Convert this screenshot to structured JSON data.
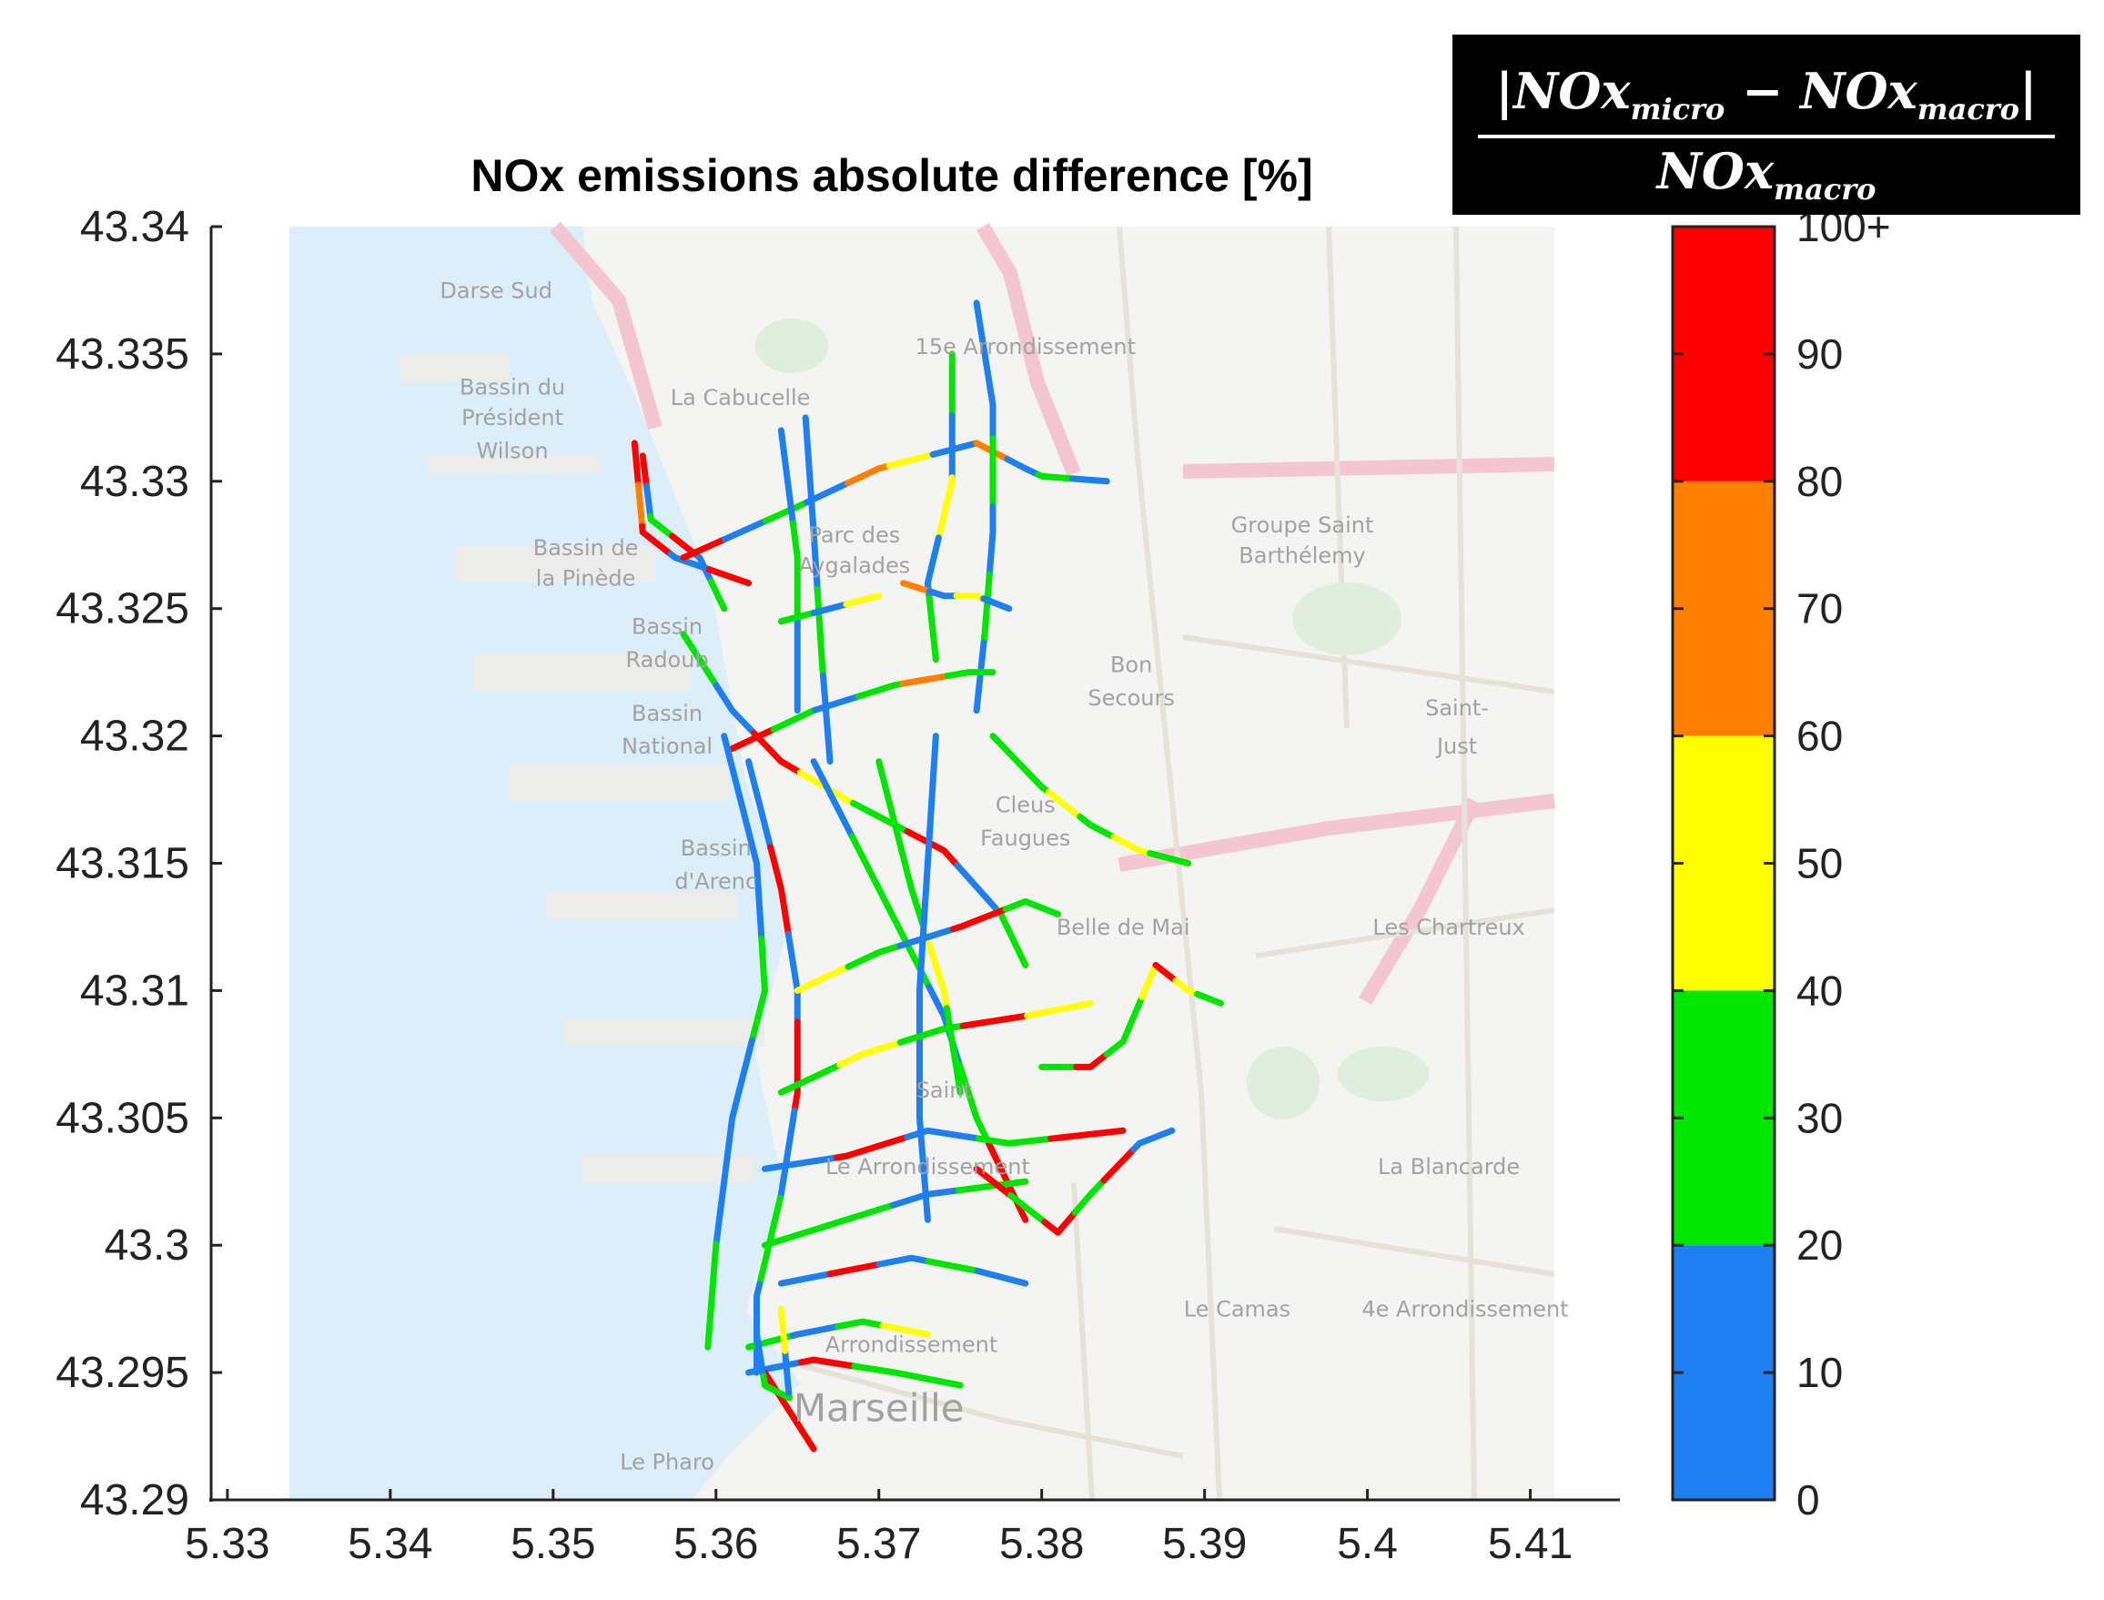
{
  "title": "NOx emissions absolute difference [%]",
  "formula": {
    "numerator_left": "|NOx",
    "numerator_sub1": "micro",
    "numerator_mid": " − NOx",
    "numerator_sub2": "macro",
    "numerator_right": "|",
    "denominator": "NOx",
    "denominator_sub": "macro"
  },
  "axes": {
    "x_ticks": [
      "5.33",
      "5.34",
      "5.35",
      "5.36",
      "5.37",
      "5.38",
      "5.39",
      "5.4",
      "5.41"
    ],
    "y_ticks": [
      "43.34",
      "43.335",
      "43.33",
      "43.325",
      "43.32",
      "43.315",
      "43.31",
      "43.305",
      "43.3",
      "43.295",
      "43.29"
    ],
    "xlim": [
      5.329,
      5.4155
    ],
    "ylim": [
      43.29,
      43.34
    ]
  },
  "colorbar": {
    "ticks": [
      "0",
      "10",
      "20",
      "30",
      "40",
      "50",
      "60",
      "70",
      "80",
      "90",
      "100+"
    ],
    "bands": [
      {
        "from": 0,
        "to": 20,
        "color": "#1e7ff0"
      },
      {
        "from": 20,
        "to": 40,
        "color": "#00e600"
      },
      {
        "from": 40,
        "to": 60,
        "color": "#ffff00"
      },
      {
        "from": 60,
        "to": 80,
        "color": "#ff7f00"
      },
      {
        "from": 80,
        "to": 100,
        "color": "#ff0000"
      }
    ]
  },
  "map_labels": [
    {
      "text": "Darse Sud",
      "lon": 5.3465,
      "lat": 43.3372
    },
    {
      "text": "La Cabucelle",
      "lon": 5.3615,
      "lat": 43.333
    },
    {
      "text": "Bassin du",
      "lon": 5.3475,
      "lat": 43.3334
    },
    {
      "text": "Président",
      "lon": 5.3475,
      "lat": 43.3322
    },
    {
      "text": "Wilson",
      "lon": 5.3475,
      "lat": 43.3309
    },
    {
      "text": "Bassin de",
      "lon": 5.352,
      "lat": 43.3271
    },
    {
      "text": "la Pinède",
      "lon": 5.352,
      "lat": 43.3259
    },
    {
      "text": "Bassin",
      "lon": 5.357,
      "lat": 43.324
    },
    {
      "text": "Radoub",
      "lon": 5.357,
      "lat": 43.3227
    },
    {
      "text": "Bassin",
      "lon": 5.357,
      "lat": 43.3206
    },
    {
      "text": "National",
      "lon": 5.357,
      "lat": 43.3193
    },
    {
      "text": "Bassin",
      "lon": 5.36,
      "lat": 43.3153
    },
    {
      "text": "d'Arenc",
      "lon": 5.36,
      "lat": 43.314
    },
    {
      "text": "15e Arrondissement",
      "lon": 5.379,
      "lat": 43.335
    },
    {
      "text": "Parc des",
      "lon": 5.3685,
      "lat": 43.3276
    },
    {
      "text": "Aygalades",
      "lon": 5.3685,
      "lat": 43.3264
    },
    {
      "text": "Bon",
      "lon": 5.3855,
      "lat": 43.3225
    },
    {
      "text": "Secours",
      "lon": 5.3855,
      "lat": 43.3212
    },
    {
      "text": "Groupe Saint",
      "lon": 5.396,
      "lat": 43.328
    },
    {
      "text": "Barthélemy",
      "lon": 5.396,
      "lat": 43.3268
    },
    {
      "text": "Saint-",
      "lon": 5.4055,
      "lat": 43.3208
    },
    {
      "text": "Just",
      "lon": 5.4055,
      "lat": 43.3193
    },
    {
      "text": "Belle de Mai",
      "lon": 5.385,
      "lat": 43.3122
    },
    {
      "text": "Les Chartreux",
      "lon": 5.405,
      "lat": 43.3122
    },
    {
      "text": "La Blancarde",
      "lon": 5.405,
      "lat": 43.3028
    },
    {
      "text": "Le Camas",
      "lon": 5.392,
      "lat": 43.2972
    },
    {
      "text": "4e Arrondissement",
      "lon": 5.406,
      "lat": 43.2972
    },
    {
      "text": "Marseille",
      "lon": 5.37,
      "lat": 43.2931
    },
    {
      "text": "Le Pharo",
      "lon": 5.357,
      "lat": 43.2912
    },
    {
      "text": "Le Arrondissement",
      "lon": 5.373,
      "lat": 43.3028
    },
    {
      "text": "Arrondissement",
      "lon": 5.372,
      "lat": 43.2958
    },
    {
      "text": "Saint",
      "lon": 5.374,
      "lat": 43.3058
    },
    {
      "text": "Cleus",
      "lon": 5.379,
      "lat": 43.317
    },
    {
      "text": "Faugues",
      "lon": 5.379,
      "lat": 43.3157
    }
  ],
  "road_segments": [
    {
      "name": "coastal-north-1",
      "points": [
        [
          5.3555,
          43.331
        ],
        [
          5.356,
          43.3285
        ],
        [
          5.359,
          43.327
        ],
        [
          5.3605,
          43.325
        ]
      ],
      "colors": [
        "red",
        "blue",
        "green",
        "red",
        "blue",
        "green"
      ]
    },
    {
      "name": "coastal-north-2",
      "points": [
        [
          5.355,
          43.3315
        ],
        [
          5.3555,
          43.328
        ],
        [
          5.3575,
          43.327
        ],
        [
          5.362,
          43.326
        ]
      ],
      "colors": [
        "red",
        "orange",
        "red",
        "blue",
        "red"
      ]
    },
    {
      "name": "northern-arterial",
      "points": [
        [
          5.358,
          43.327
        ],
        [
          5.365,
          43.329
        ],
        [
          5.37,
          43.3305
        ],
        [
          5.376,
          43.3315
        ]
      ],
      "colors": [
        "red",
        "blue",
        "green",
        "blue",
        "orange",
        "yellow",
        "blue"
      ]
    },
    {
      "name": "north-spur-1",
      "points": [
        [
          5.376,
          43.3315
        ],
        [
          5.379,
          43.3305
        ],
        [
          5.38,
          43.3302
        ],
        [
          5.384,
          43.33
        ]
      ],
      "colors": [
        "orange",
        "blue",
        "green",
        "blue"
      ]
    },
    {
      "name": "vertical-east-1",
      "points": [
        [
          5.376,
          43.337
        ],
        [
          5.377,
          43.333
        ],
        [
          5.377,
          43.328
        ],
        [
          5.3765,
          43.324
        ],
        [
          5.376,
          43.321
        ]
      ],
      "colors": [
        "blue",
        "blue",
        "green",
        "blue",
        "green",
        "blue"
      ]
    },
    {
      "name": "vertical-east-2",
      "points": [
        [
          5.3745,
          43.335
        ],
        [
          5.3745,
          43.33
        ],
        [
          5.373,
          43.326
        ],
        [
          5.3735,
          43.323
        ]
      ],
      "colors": [
        "green",
        "blue",
        "yellow",
        "blue",
        "green"
      ]
    },
    {
      "name": "vertical-mid-1",
      "points": [
        [
          5.3655,
          43.3325
        ],
        [
          5.366,
          43.328
        ],
        [
          5.3665,
          43.323
        ],
        [
          5.367,
          43.319
        ]
      ],
      "colors": [
        "blue",
        "blue",
        "green",
        "blue"
      ]
    },
    {
      "name": "vertical-mid-2",
      "points": [
        [
          5.364,
          43.332
        ],
        [
          5.365,
          43.327
        ],
        [
          5.365,
          43.321
        ]
      ],
      "colors": [
        "blue",
        "green",
        "blue"
      ]
    },
    {
      "name": "cross-1",
      "points": [
        [
          5.364,
          43.3245
        ],
        [
          5.367,
          43.325
        ],
        [
          5.37,
          43.3255
        ]
      ],
      "colors": [
        "green",
        "blue",
        "yellow"
      ]
    },
    {
      "name": "cross-2",
      "points": [
        [
          5.3715,
          43.326
        ],
        [
          5.374,
          43.3255
        ],
        [
          5.376,
          43.3255
        ],
        [
          5.378,
          43.325
        ]
      ],
      "colors": [
        "orange",
        "blue",
        "yellow",
        "blue"
      ]
    },
    {
      "name": "diagonal-main",
      "points": [
        [
          5.358,
          43.324
        ],
        [
          5.361,
          43.321
        ],
        [
          5.364,
          43.319
        ],
        [
          5.368,
          43.3175
        ],
        [
          5.374,
          43.3155
        ],
        [
          5.3775,
          43.313
        ],
        [
          5.379,
          43.311
        ]
      ],
      "colors": [
        "green",
        "blue",
        "red",
        "yellow",
        "green",
        "red",
        "blue",
        "green"
      ]
    },
    {
      "name": "belt-road",
      "points": [
        [
          5.361,
          43.3195
        ],
        [
          5.366,
          43.321
        ],
        [
          5.371,
          43.322
        ],
        [
          5.3755,
          43.3225
        ],
        [
          5.377,
          43.3225
        ]
      ],
      "colors": [
        "red",
        "green",
        "blue",
        "green",
        "orange",
        "green"
      ]
    },
    {
      "name": "east-branch",
      "points": [
        [
          5.377,
          43.32
        ],
        [
          5.38,
          43.318
        ],
        [
          5.383,
          43.3165
        ],
        [
          5.386,
          43.3155
        ],
        [
          5.389,
          43.315
        ]
      ],
      "colors": [
        "green",
        "green",
        "yellow",
        "green",
        "yellow",
        "green"
      ]
    },
    {
      "name": "south-trunk-1",
      "points": [
        [
          5.362,
          43.319
        ],
        [
          5.364,
          43.314
        ],
        [
          5.365,
          43.31
        ],
        [
          5.365,
          43.306
        ],
        [
          5.364,
          43.302
        ],
        [
          5.3625,
          43.298
        ],
        [
          5.3625,
          43.295
        ]
      ],
      "colors": [
        "blue",
        "red",
        "blue",
        "red",
        "blue",
        "green",
        "blue"
      ]
    },
    {
      "name": "south-trunk-2",
      "points": [
        [
          5.3605,
          43.32
        ],
        [
          5.3625,
          43.315
        ],
        [
          5.363,
          43.31
        ],
        [
          5.361,
          43.305
        ],
        [
          5.36,
          43.3
        ],
        [
          5.3595,
          43.296
        ]
      ],
      "colors": [
        "blue",
        "blue",
        "green",
        "blue",
        "blue",
        "green"
      ]
    },
    {
      "name": "boulevard-1",
      "points": [
        [
          5.366,
          43.319
        ],
        [
          5.37,
          43.314
        ],
        [
          5.374,
          43.309
        ],
        [
          5.376,
          43.305
        ],
        [
          5.379,
          43.301
        ]
      ],
      "colors": [
        "blue",
        "green",
        "green",
        "blue",
        "green",
        "red"
      ]
    },
    {
      "name": "boulevard-2",
      "points": [
        [
          5.37,
          43.319
        ],
        [
          5.372,
          43.314
        ],
        [
          5.374,
          43.31
        ],
        [
          5.375,
          43.306
        ]
      ],
      "colors": [
        "green",
        "green",
        "yellow",
        "green"
      ]
    },
    {
      "name": "vertical-center",
      "points": [
        [
          5.3735,
          43.32
        ],
        [
          5.373,
          43.315
        ],
        [
          5.3725,
          43.31
        ],
        [
          5.3725,
          43.305
        ],
        [
          5.373,
          43.301
        ]
      ],
      "colors": [
        "blue",
        "blue",
        "blue",
        "blue",
        "blue"
      ]
    },
    {
      "name": "cross-3",
      "points": [
        [
          5.365,
          43.31
        ],
        [
          5.37,
          43.3115
        ],
        [
          5.375,
          43.3125
        ],
        [
          5.379,
          43.3135
        ],
        [
          5.381,
          43.313
        ]
      ],
      "colors": [
        "yellow",
        "green",
        "blue",
        "red",
        "green"
      ]
    },
    {
      "name": "cross-4",
      "points": [
        [
          5.364,
          43.306
        ],
        [
          5.369,
          43.3075
        ],
        [
          5.374,
          43.3085
        ],
        [
          5.379,
          43.309
        ],
        [
          5.383,
          43.3095
        ]
      ],
      "colors": [
        "green",
        "yellow",
        "green",
        "red",
        "yellow"
      ]
    },
    {
      "name": "cross-5",
      "points": [
        [
          5.363,
          43.303
        ],
        [
          5.368,
          43.3035
        ],
        [
          5.373,
          43.3045
        ],
        [
          5.378,
          43.304
        ],
        [
          5.385,
          43.3045
        ]
      ],
      "colors": [
        "blue",
        "red",
        "blue",
        "green",
        "red"
      ]
    },
    {
      "name": "cross-6",
      "points": [
        [
          5.363,
          43.3
        ],
        [
          5.368,
          43.301
        ],
        [
          5.373,
          43.302
        ],
        [
          5.379,
          43.3025
        ]
      ],
      "colors": [
        "green",
        "green",
        "blue",
        "green"
      ]
    },
    {
      "name": "east-loop",
      "points": [
        [
          5.38,
          43.307
        ],
        [
          5.383,
          43.307
        ],
        [
          5.385,
          43.308
        ],
        [
          5.386,
          43.3095
        ],
        [
          5.387,
          43.311
        ]
      ],
      "colors": [
        "green",
        "red",
        "green",
        "green",
        "yellow"
      ]
    },
    {
      "name": "east-spur",
      "points": [
        [
          5.387,
          43.311
        ],
        [
          5.389,
          43.31
        ],
        [
          5.391,
          43.3095
        ]
      ],
      "colors": [
        "red",
        "yellow",
        "green"
      ]
    },
    {
      "name": "south-east",
      "points": [
        [
          5.376,
          43.303
        ],
        [
          5.379,
          43.3015
        ],
        [
          5.381,
          43.3005
        ],
        [
          5.383,
          43.302
        ],
        [
          5.386,
          43.304
        ],
        [
          5.388,
          43.3045
        ]
      ],
      "colors": [
        "red",
        "green",
        "red",
        "green",
        "red",
        "blue"
      ]
    },
    {
      "name": "south-diag",
      "points": [
        [
          5.364,
          43.2985
        ],
        [
          5.368,
          43.299
        ],
        [
          5.372,
          43.2995
        ],
        [
          5.376,
          43.299
        ],
        [
          5.379,
          43.2985
        ]
      ],
      "colors": [
        "blue",
        "red",
        "blue",
        "green",
        "blue"
      ]
    },
    {
      "name": "old-port-1",
      "points": [
        [
          5.362,
          43.296
        ],
        [
          5.365,
          43.2965
        ],
        [
          5.369,
          43.297
        ],
        [
          5.373,
          43.2965
        ]
      ],
      "colors": [
        "green",
        "blue",
        "green",
        "yellow"
      ]
    },
    {
      "name": "old-port-2",
      "points": [
        [
          5.362,
          43.295
        ],
        [
          5.366,
          43.2955
        ],
        [
          5.371,
          43.295
        ],
        [
          5.375,
          43.2945
        ]
      ],
      "colors": [
        "blue",
        "red",
        "green",
        "green"
      ]
    },
    {
      "name": "canebiere",
      "points": [
        [
          5.363,
          43.295
        ],
        [
          5.365,
          43.293
        ],
        [
          5.366,
          43.292
        ]
      ],
      "colors": [
        "red",
        "red",
        "red"
      ]
    },
    {
      "name": "port-loop",
      "points": [
        [
          5.3625,
          43.2965
        ],
        [
          5.363,
          43.2945
        ],
        [
          5.3645,
          43.294
        ],
        [
          5.364,
          43.2975
        ]
      ],
      "colors": [
        "blue",
        "green",
        "blue",
        "yellow"
      ]
    }
  ]
}
